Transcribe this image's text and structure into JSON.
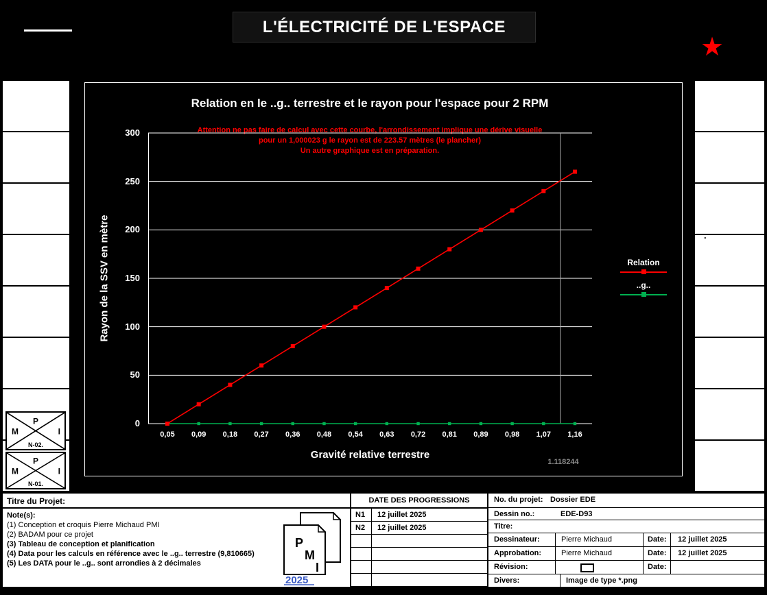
{
  "header": {
    "title": "L'ÉLECTRICITÉ DE L'ESPACE",
    "star_icon": "★",
    "star_color": "#FF0000"
  },
  "right_strip": {
    "dot": "."
  },
  "corner_logos": {
    "p": "P",
    "m": "M",
    "i": "I",
    "top_label": "N-02.",
    "bottom_label": "N-01."
  },
  "chart_data": {
    "type": "line",
    "title": "Relation en le ..g.. terrestre et le rayon pour l'espace pour 2 RPM",
    "warning_lines": [
      "Attention ne pas faire de calcul avec cette courbe, l'arrondissement implique une dérive visuelle",
      "pour un 1,000023 g le rayon est de 223.57 mètres (le plancher)",
      "Un autre graphique est en préparation."
    ],
    "xlabel": "Gravité relative terrestre",
    "ylabel": "Rayon de la SSV en mètre",
    "categories": [
      "0,05",
      "0,09",
      "0,18",
      "0,27",
      "0,36",
      "0,48",
      "0,54",
      "0,63",
      "0,72",
      "0,81",
      "0,89",
      "0,98",
      "1,07",
      "1,16"
    ],
    "categories_numeric": [
      0.05,
      0.09,
      0.18,
      0.27,
      0.36,
      0.48,
      0.54,
      0.63,
      0.72,
      0.81,
      0.89,
      0.98,
      1.07,
      1.16
    ],
    "yticks": [
      0,
      50,
      100,
      150,
      200,
      250,
      300
    ],
    "ylim": [
      0,
      300
    ],
    "grid": "horizontal",
    "legend_position": "right-inside",
    "series": [
      {
        "name": "Relation",
        "color": "#FF0000",
        "marker": "square",
        "values": [
          0,
          20,
          40,
          60,
          80,
          100,
          120,
          140,
          160,
          180,
          200,
          220,
          240,
          260
        ]
      },
      {
        "name": "..g..",
        "color": "#00B050",
        "marker": "square",
        "values": [
          0,
          0,
          0,
          0,
          0,
          0,
          0,
          0,
          0,
          0,
          0,
          0,
          0,
          0
        ]
      }
    ],
    "vline_value": 1.118244,
    "vline_label": "1.118244",
    "colors": {
      "grid": "#FFFFFF",
      "vline": "#AAAAAA",
      "warning": "#FF0000",
      "vline_label": "#8A8A8A"
    }
  },
  "footer": {
    "titre_label": "Titre du Projet:",
    "notes_label": "Note(s):",
    "notes": [
      "(1) Conception et croquis Pierre Michaud PMI",
      "(2) BADAM pour ce projet",
      "(3) Tableau de conception et planification",
      "(4) Data pour les calculs en référence avec le ..g.. terrestre (9,810665)",
      "(5) Les DATA pour le ..g.. sont arrondies à 2 décimales"
    ],
    "pmi_logo": {
      "p": "P",
      "m": "M",
      "i": "I",
      "year": "2025",
      "year_color": "#3B5BC4"
    },
    "dates": {
      "header": "DATE DES PROGRESSIONS",
      "rows": [
        {
          "n": "N1",
          "date": "12 juillet 2025"
        },
        {
          "n": "N2",
          "date": "12 juillet 2025"
        }
      ]
    },
    "project": {
      "no_label": "No. du projet:",
      "no_value": "Dossier EDE",
      "dessin_label": "Dessin no.:",
      "dessin_value": "EDE-D93",
      "titre_label": "Titre:",
      "dessinateur_label": "Dessinateur:",
      "dessinateur_value": "Pierre Michaud",
      "date_label": "Date:",
      "dessinateur_date": "12 juillet 2025",
      "approbation_label": "Approbation:",
      "approbation_value": "Pierre Michaud",
      "approbation_date": "12 juillet 2025",
      "revision_label": "Révision:",
      "divers_label": "Divers:",
      "divers_value": "Image de type *.png"
    }
  }
}
